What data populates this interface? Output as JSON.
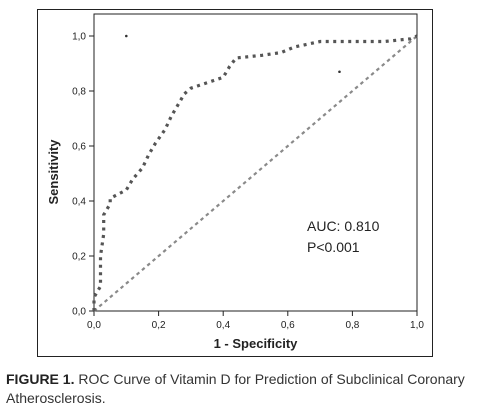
{
  "chart_data": {
    "type": "line",
    "title": "",
    "xlabel": "1 - Specificity",
    "ylabel": "Sensitivity",
    "xlim": [
      0,
      1
    ],
    "ylim": [
      0,
      1
    ],
    "x_tick_labels": [
      "0,0",
      "0,2",
      "0,4",
      "0,6",
      "0,8",
      "1,0"
    ],
    "y_tick_labels": [
      "0,0",
      "0,2",
      "0,4",
      "0,6",
      "0,8",
      "1,0"
    ],
    "grid": false,
    "series": [
      {
        "style": "dotted",
        "x": [
          0.0,
          0.0,
          0.02,
          0.02,
          0.03,
          0.03,
          0.05,
          0.05,
          0.1,
          0.12,
          0.15,
          0.17,
          0.19,
          0.22,
          0.24,
          0.26,
          0.28,
          0.3,
          0.4,
          0.42,
          0.44,
          0.52,
          0.58,
          0.62,
          0.66,
          0.7,
          0.9,
          0.98,
          1.0
        ],
        "y": [
          0.0,
          0.05,
          0.09,
          0.2,
          0.28,
          0.35,
          0.39,
          0.41,
          0.44,
          0.48,
          0.52,
          0.57,
          0.61,
          0.66,
          0.71,
          0.75,
          0.79,
          0.81,
          0.85,
          0.89,
          0.92,
          0.93,
          0.94,
          0.96,
          0.97,
          0.98,
          0.98,
          0.99,
          1.0
        ]
      },
      {
        "style": "dashed-reference",
        "x": [
          0,
          1
        ],
        "y": [
          0,
          1
        ]
      }
    ],
    "outliers": [
      {
        "x": 0.1,
        "y": 1.0
      },
      {
        "x": 0.76,
        "y": 0.87
      }
    ],
    "annotations": [
      "AUC: 0.810",
      "P<0.001"
    ]
  },
  "caption": {
    "label": "FIGURE 1.",
    "text": " ROC Curve of Vitamin D for Prediction of Subclinical Coronary Atherosclerosis."
  }
}
